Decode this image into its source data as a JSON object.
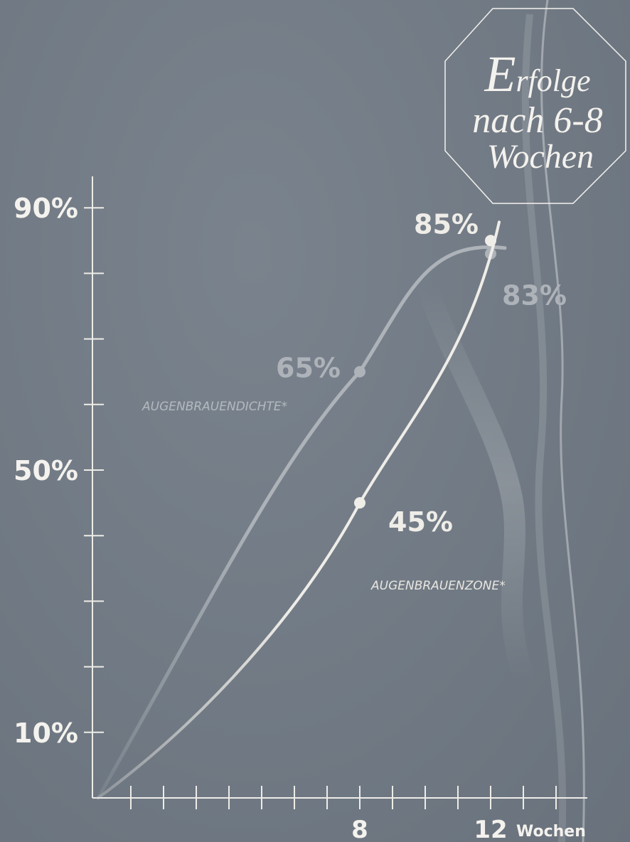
{
  "badge": {
    "line1_initial": "E",
    "line1_rest": "rfolge",
    "line2": "nach 6-8",
    "line3": "Wochen"
  },
  "chart_data": {
    "type": "line",
    "x_ticks": [
      {
        "value": 8,
        "label": "8"
      },
      {
        "value": 12,
        "label": "12"
      }
    ],
    "x_unit_label": "Wochen",
    "xlim": [
      0,
      15
    ],
    "ylim": [
      0,
      90
    ],
    "y_ticks": [
      {
        "value": 10,
        "label": "10%"
      },
      {
        "value": 50,
        "label": "50%"
      },
      {
        "value": 90,
        "label": "90%"
      }
    ],
    "y_minor_step": 10,
    "x_minor_step": 1,
    "series": [
      {
        "name": "AUGENBRAUENDICHTE*",
        "color": "#aeb3b9",
        "points": [
          [
            0,
            0
          ],
          [
            8,
            65
          ],
          [
            12,
            83
          ]
        ],
        "labels": [
          {
            "x": 8,
            "y": 65,
            "text": "65%"
          },
          {
            "x": 12,
            "y": 83,
            "text": "83%"
          }
        ]
      },
      {
        "name": "AUGENBRAUENZONE*",
        "color": "#efede8",
        "points": [
          [
            0,
            0
          ],
          [
            8,
            45
          ],
          [
            12,
            85
          ]
        ],
        "labels": [
          {
            "x": 8,
            "y": 45,
            "text": "45%"
          },
          {
            "x": 12,
            "y": 85,
            "text": "85%"
          }
        ]
      }
    ]
  }
}
